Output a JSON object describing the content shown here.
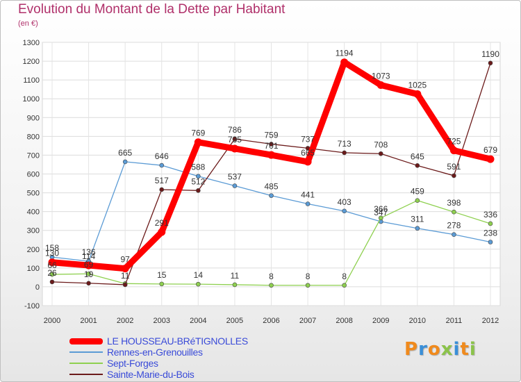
{
  "title": "Evolution du Montant de la Dette par Habitant",
  "subtitle": "(en €)",
  "logo": {
    "text": "Proxiti",
    "colors": [
      "#f08a1c",
      "#3a8fd8",
      "#f08a1c",
      "#8bc34a",
      "#3a8fd8",
      "#f08a1c",
      "#8bc34a"
    ]
  },
  "chart_data": {
    "type": "line",
    "x": [
      "2000",
      "2001",
      "2002",
      "2003",
      "2004",
      "2005",
      "2006",
      "2007",
      "2008",
      "2009",
      "2010",
      "2011",
      "2012"
    ],
    "ylim": [
      -100,
      1300
    ],
    "yticks": [
      -100,
      0,
      100,
      200,
      300,
      400,
      500,
      600,
      700,
      800,
      900,
      1000,
      1100,
      1200,
      1300
    ],
    "grid": true,
    "legend_position": "bottom-left",
    "series": [
      {
        "name": "LE HOUSSEAU-BRéTIGNOLLES",
        "color": "#ff0000",
        "values": [
          130,
          114,
          97,
          291,
          769,
          735,
          701,
          665,
          1194,
          1073,
          1025,
          725,
          679
        ],
        "labels": [
          "130",
          "114",
          "97",
          "291",
          "769",
          "735",
          "701",
          "665",
          "1194",
          "1073",
          "1025",
          "725",
          "679"
        ]
      },
      {
        "name": "Rennes-en-Grenouilles",
        "color": "#5b9bd5",
        "values": [
          158,
          136,
          665,
          646,
          588,
          537,
          485,
          441,
          403,
          347,
          311,
          278,
          238
        ],
        "labels": [
          "158",
          "136",
          "665",
          "646",
          "588",
          "537",
          "485",
          "441",
          "403",
          "347",
          "311",
          "278",
          "238"
        ]
      },
      {
        "name": "Sept-Forges",
        "color": "#8ed04f",
        "values": [
          66,
          69,
          17,
          15,
          14,
          11,
          8,
          8,
          8,
          366,
          459,
          398,
          336
        ],
        "labels": [
          "66",
          "69",
          "",
          "15",
          "14",
          "11",
          "8",
          "8",
          "8",
          "366",
          "459",
          "398",
          "336"
        ]
      },
      {
        "name": "Sainte-Marie-du-Bois",
        "color": "#6b1a1a",
        "values": [
          26,
          19,
          11,
          517,
          512,
          786,
          759,
          737,
          713,
          708,
          645,
          591,
          1190
        ],
        "labels": [
          "26",
          "19",
          "11",
          "517",
          "512",
          "786",
          "759",
          "737",
          "713",
          "708",
          "645",
          "591",
          "1190"
        ]
      }
    ]
  }
}
